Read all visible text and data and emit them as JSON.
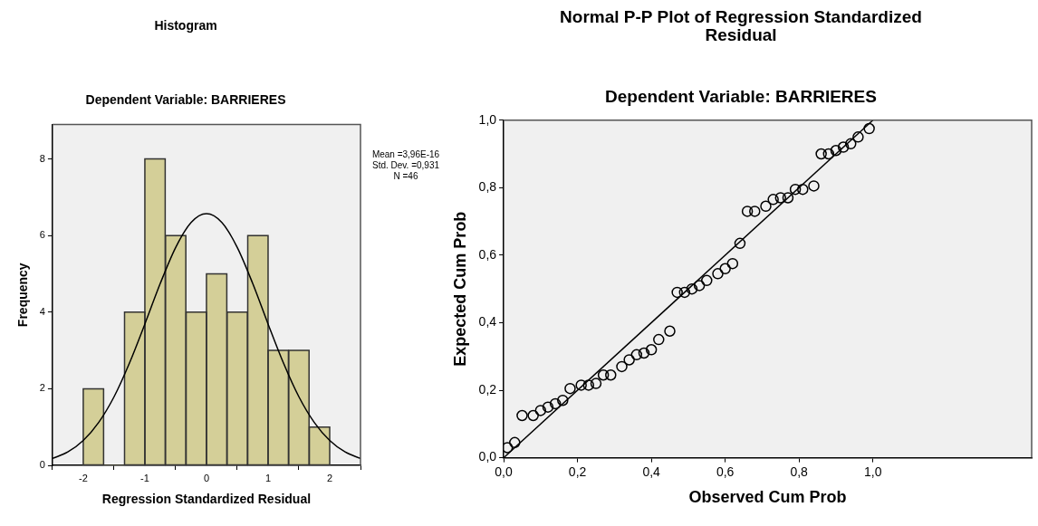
{
  "chart_data": [
    {
      "type": "histogram",
      "title": "Histogram",
      "subtitle": "Dependent Variable: BARRIERES",
      "xlabel": "Regression Standardized Residual",
      "ylabel": "Frequency",
      "bins": [
        -2,
        -1.67,
        -1.33,
        -1,
        -0.67,
        -0.33,
        0,
        0.33,
        0.67,
        1,
        1.33,
        1.67,
        2
      ],
      "values": [
        2,
        0,
        4,
        8,
        6,
        4,
        5,
        4,
        6,
        3,
        3,
        1
      ],
      "color": "#d4cf98",
      "xlim": [
        -2.5,
        2.5
      ],
      "ylim": [
        0,
        8.9
      ],
      "xticks": [
        -2,
        -1,
        0,
        1,
        2
      ],
      "yticks": [
        0,
        2,
        4,
        6,
        8
      ],
      "grid": false,
      "legend": false,
      "annotations": [
        "Mean =3,96E-16",
        "Std. Dev. =0,931",
        "N =46"
      ],
      "series": [
        {
          "type": "line",
          "color": "#000000",
          "marker": "none",
          "x": [
            -2.5,
            -2.25,
            -2,
            -1.75,
            -1.5,
            -1.25,
            -1,
            -0.75,
            -0.5,
            -0.25,
            0,
            0.25,
            0.5,
            0.75,
            1,
            1.25,
            1.5,
            1.75,
            2,
            2.25,
            2.5
          ],
          "values": [
            0.18,
            0.35,
            0.65,
            1.12,
            1.79,
            2.67,
            3.69,
            4.75,
            5.69,
            6.34,
            6.57,
            6.34,
            5.69,
            4.75,
            3.69,
            2.67,
            1.79,
            1.12,
            0.65,
            0.35,
            0.18
          ]
        }
      ]
    },
    {
      "type": "scatter",
      "title": "Normal P-P Plot of Regression Standardized Residual",
      "subtitle": "Dependent Variable: BARRIERES",
      "xlabel": "Observed Cum Prob",
      "ylabel": "Expected Cum Prob",
      "xlim": [
        0,
        1.43
      ],
      "ylim": [
        0,
        1
      ],
      "xticks": [
        {
          "value": 0,
          "label": "0,0"
        },
        {
          "value": 0.2,
          "label": "0,2"
        },
        {
          "value": 0.4,
          "label": "0,4"
        },
        {
          "value": 0.6,
          "label": "0,6"
        },
        {
          "value": 0.8,
          "label": "0,8"
        },
        {
          "value": 1,
          "label": "1,0"
        }
      ],
      "yticks": [
        {
          "value": 0,
          "label": "0,0"
        },
        {
          "value": 0.2,
          "label": "0,2"
        },
        {
          "value": 0.4,
          "label": "0,4"
        },
        {
          "value": 0.6,
          "label": "0,6"
        },
        {
          "value": 0.8,
          "label": "0,8"
        },
        {
          "value": 1,
          "label": "1,0"
        }
      ],
      "grid": false,
      "legend": false,
      "series": [
        {
          "type": "scatter",
          "color": "#000000",
          "marker": "circle",
          "x": [
            0.01,
            0.03,
            0.05,
            0.08,
            0.1,
            0.12,
            0.14,
            0.16,
            0.18,
            0.21,
            0.23,
            0.25,
            0.27,
            0.29,
            0.32,
            0.34,
            0.36,
            0.38,
            0.4,
            0.42,
            0.45,
            0.47,
            0.49,
            0.51,
            0.53,
            0.55,
            0.58,
            0.6,
            0.62,
            0.64,
            0.66,
            0.68,
            0.71,
            0.73,
            0.75,
            0.77,
            0.79,
            0.81,
            0.84,
            0.86,
            0.88,
            0.9,
            0.92,
            0.94,
            0.96,
            0.99
          ],
          "values": [
            0.03,
            0.045,
            0.125,
            0.125,
            0.14,
            0.15,
            0.16,
            0.17,
            0.205,
            0.215,
            0.215,
            0.22,
            0.245,
            0.245,
            0.27,
            0.29,
            0.305,
            0.31,
            0.32,
            0.35,
            0.375,
            0.49,
            0.49,
            0.5,
            0.51,
            0.525,
            0.545,
            0.56,
            0.575,
            0.635,
            0.73,
            0.73,
            0.745,
            0.765,
            0.77,
            0.77,
            0.795,
            0.795,
            0.805,
            0.9,
            0.9,
            0.91,
            0.92,
            0.93,
            0.95,
            0.975
          ]
        },
        {
          "type": "line",
          "color": "#000000",
          "marker": "none",
          "x": [
            0,
            1
          ],
          "values": [
            0,
            1
          ]
        }
      ]
    }
  ]
}
